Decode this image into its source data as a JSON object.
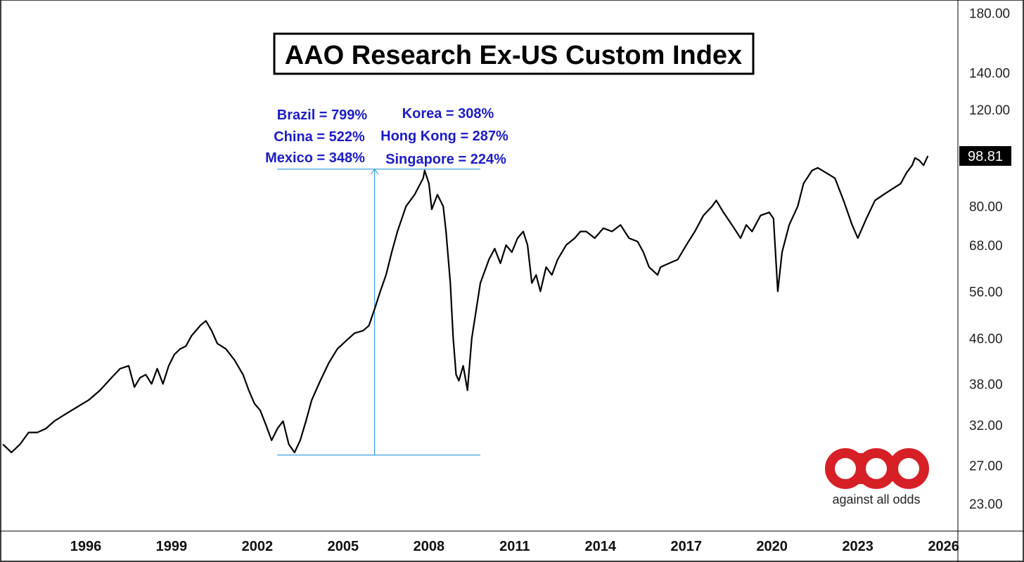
{
  "chart_data": {
    "type": "line",
    "title": "AAO Research Ex-US Custom Index",
    "scale": "log",
    "x_range": [
      1993.0,
      2026.5
    ],
    "y_range": [
      20.5,
      190
    ],
    "grid": false,
    "y_ticks": [
      "180.00",
      "140.00",
      "120.00",
      "98.81",
      "80.00",
      "68.00",
      "56.00",
      "46.00",
      "38.00",
      "32.00",
      "27.00",
      "23.00"
    ],
    "x_ticks": [
      "1996",
      "1999",
      "2002",
      "2005",
      "2008",
      "2011",
      "2014",
      "2017",
      "2020",
      "2023",
      "2026"
    ],
    "current_value": "98.81",
    "series": [
      {
        "x": [
          1993.1,
          1993.4,
          1993.7,
          1994.0,
          1994.3,
          1994.6,
          1994.9,
          1995.3,
          1995.7,
          1996.1,
          1996.5,
          1996.9,
          1997.2,
          1997.5,
          1997.7,
          1997.9,
          1998.1,
          1998.3,
          1998.5,
          1998.7,
          1998.9,
          1999.1,
          1999.3,
          1999.5,
          1999.7,
          2000.0,
          2000.2,
          2000.4,
          2000.6,
          2000.9,
          2001.2,
          2001.5,
          2001.7,
          2001.9,
          2002.1,
          2002.3,
          2002.5,
          2002.7,
          2002.9,
          2003.1,
          2003.3,
          2003.5,
          2003.7,
          2003.9,
          2004.2,
          2004.5,
          2004.8,
          2005.1,
          2005.4,
          2005.7,
          2005.9,
          2006.1,
          2006.3,
          2006.5,
          2006.7,
          2006.9,
          2007.2,
          2007.5,
          2007.8,
          2007.85,
          2008.0,
          2008.1,
          2008.3,
          2008.5,
          2008.6,
          2008.75,
          2008.85,
          2008.95,
          2009.05,
          2009.2,
          2009.35,
          2009.5,
          2009.8,
          2010.1,
          2010.3,
          2010.5,
          2010.7,
          2010.9,
          2011.1,
          2011.3,
          2011.45,
          2011.6,
          2011.75,
          2011.9,
          2012.1,
          2012.3,
          2012.5,
          2012.8,
          2013.1,
          2013.3,
          2013.5,
          2013.8,
          2014.1,
          2014.4,
          2014.7,
          2015.0,
          2015.3,
          2015.5,
          2015.7,
          2016.0,
          2016.1,
          2016.4,
          2016.7,
          2017.0,
          2017.3,
          2017.6,
          2017.9,
          2018.05,
          2018.3,
          2018.6,
          2018.9,
          2019.1,
          2019.3,
          2019.6,
          2019.9,
          2020.05,
          2020.2,
          2020.35,
          2020.6,
          2020.9,
          2021.1,
          2021.4,
          2021.6,
          2021.9,
          2022.2,
          2022.5,
          2022.8,
          2023.0,
          2023.3,
          2023.6,
          2023.9,
          2024.2,
          2024.5,
          2024.7,
          2024.9,
          2025.0,
          2025.15,
          2025.3,
          2025.45
        ],
        "values": [
          29.5,
          28.5,
          29.5,
          31.0,
          31.0,
          31.5,
          32.5,
          33.5,
          34.5,
          35.5,
          37.0,
          39.0,
          40.5,
          41.0,
          37.5,
          39.0,
          39.5,
          38.0,
          40.5,
          38.0,
          41.0,
          43.0,
          44.0,
          44.5,
          46.5,
          48.5,
          49.5,
          47.5,
          45.0,
          44.0,
          42.0,
          39.5,
          37.0,
          35.0,
          34.0,
          32.0,
          30.0,
          31.5,
          32.5,
          29.5,
          28.5,
          30.0,
          32.5,
          35.5,
          38.5,
          41.5,
          44.0,
          45.5,
          47.0,
          47.5,
          48.5,
          52.0,
          56.0,
          60.0,
          66.0,
          72.0,
          80.0,
          84.0,
          90.0,
          93.0,
          88.0,
          79.0,
          84.0,
          80.0,
          72.0,
          58.0,
          46.0,
          39.5,
          38.5,
          41.0,
          37.0,
          46.0,
          58.0,
          64.0,
          67.0,
          63.0,
          68.0,
          66.0,
          70.0,
          72.0,
          68.0,
          58.0,
          60.0,
          56.0,
          62.0,
          60.0,
          64.0,
          68.0,
          70.0,
          72.0,
          72.0,
          70.0,
          73.0,
          72.0,
          74.0,
          70.0,
          69.0,
          66.0,
          62.0,
          60.0,
          62.0,
          63.0,
          64.0,
          68.0,
          72.0,
          77.0,
          80.0,
          82.0,
          78.0,
          74.0,
          70.0,
          74.0,
          72.0,
          77.0,
          78.0,
          76.0,
          56.0,
          66.0,
          74.0,
          80.0,
          88.0,
          93.0,
          94.0,
          92.0,
          90.0,
          82.0,
          74.0,
          70.0,
          76.0,
          82.0,
          84.0,
          86.0,
          88.0,
          92.0,
          95.0,
          98.0,
          97.0,
          95.0,
          98.81
        ]
      }
    ],
    "annotations": [
      "Brazil = 799%",
      "China = 522%",
      "Mexico = 348%",
      "Korea = 308%",
      "Hong Kong = 287%",
      "Singapore = 224%"
    ],
    "measure": {
      "low": 28.2,
      "high": 93.5,
      "x_from": 2002.7,
      "x_to": 2009.8,
      "x_arrow": 2006.1
    }
  },
  "logo": {
    "text": "against all odds",
    "color": "#d71f26"
  },
  "colors": {
    "line": "#000000",
    "annotation": "#1c1cc8",
    "measure": "#3aa0e0"
  }
}
